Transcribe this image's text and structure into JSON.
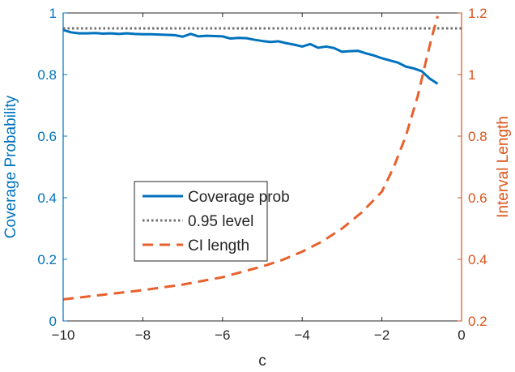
{
  "chart_data": {
    "type": "line",
    "title": "",
    "xlabel": "c",
    "ylabel_left": "Coverage Probability",
    "ylabel_right": "Interval Length",
    "xlim": [
      -10,
      0
    ],
    "ylim_left": [
      0,
      1
    ],
    "ylim_right": [
      0.2,
      1.2
    ],
    "x_ticks": [
      -10,
      -8,
      -6,
      -4,
      -2,
      0
    ],
    "x_tick_labels": [
      "−10",
      "−8",
      "−6",
      "−4",
      "−2",
      "0"
    ],
    "y_left_ticks": [
      0,
      0.2,
      0.4,
      0.6,
      0.8,
      1
    ],
    "y_left_tick_labels": [
      "0",
      "0.2",
      "0.4",
      "0.6",
      "0.8",
      "1"
    ],
    "y_right_ticks": [
      0.2,
      0.4,
      0.6,
      0.8,
      1,
      1.2
    ],
    "y_right_tick_labels": [
      "0.2",
      "0.4",
      "0.6",
      "0.8",
      "1",
      "1.2"
    ],
    "grid": false,
    "legend_position": "center-left",
    "colors": {
      "left_axis": "#0072BD",
      "right_axis": "#D95319",
      "coverage": "#0072BD",
      "level": "#707070",
      "ci": "#E8602C"
    },
    "series": [
      {
        "name": "Coverage prob",
        "axis": "left",
        "style": "solid",
        "x": [
          -10,
          -9.8,
          -9.6,
          -9.4,
          -9.2,
          -9.0,
          -8.8,
          -8.6,
          -8.4,
          -8.2,
          -8.0,
          -7.8,
          -7.6,
          -7.4,
          -7.2,
          -7.0,
          -6.8,
          -6.6,
          -6.4,
          -6.2,
          -6.0,
          -5.8,
          -5.6,
          -5.4,
          -5.2,
          -5.0,
          -4.8,
          -4.6,
          -4.4,
          -4.2,
          -4.0,
          -3.8,
          -3.6,
          -3.4,
          -3.2,
          -3.0,
          -2.8,
          -2.6,
          -2.4,
          -2.2,
          -2.0,
          -1.8,
          -1.6,
          -1.4,
          -1.2,
          -1.0,
          -0.8,
          -0.6
        ],
        "y": [
          0.945,
          0.937,
          0.934,
          0.934,
          0.935,
          0.933,
          0.934,
          0.932,
          0.934,
          0.932,
          0.931,
          0.931,
          0.93,
          0.929,
          0.928,
          0.923,
          0.932,
          0.924,
          0.926,
          0.925,
          0.924,
          0.917,
          0.919,
          0.918,
          0.913,
          0.909,
          0.906,
          0.908,
          0.902,
          0.897,
          0.891,
          0.899,
          0.887,
          0.891,
          0.886,
          0.874,
          0.876,
          0.877,
          0.869,
          0.862,
          0.853,
          0.846,
          0.839,
          0.826,
          0.82,
          0.811,
          0.787,
          0.77
        ]
      },
      {
        "name": "0.95 level",
        "axis": "left",
        "style": "dotted",
        "x": [
          -10,
          0
        ],
        "y": [
          0.95,
          0.95
        ]
      },
      {
        "name": "CI length",
        "axis": "right",
        "style": "dashed",
        "x": [
          -10,
          -9.0,
          -8.0,
          -7.0,
          -6.0,
          -5.0,
          -4.5,
          -4.0,
          -3.5,
          -3.0,
          -2.5,
          -2.0,
          -1.7,
          -1.4,
          -1.1,
          -0.9,
          -0.75,
          -0.6
        ],
        "y": [
          0.27,
          0.285,
          0.3,
          0.318,
          0.342,
          0.377,
          0.398,
          0.425,
          0.458,
          0.5,
          0.553,
          0.62,
          0.7,
          0.8,
          0.93,
          1.04,
          1.12,
          1.19
        ]
      }
    ]
  }
}
